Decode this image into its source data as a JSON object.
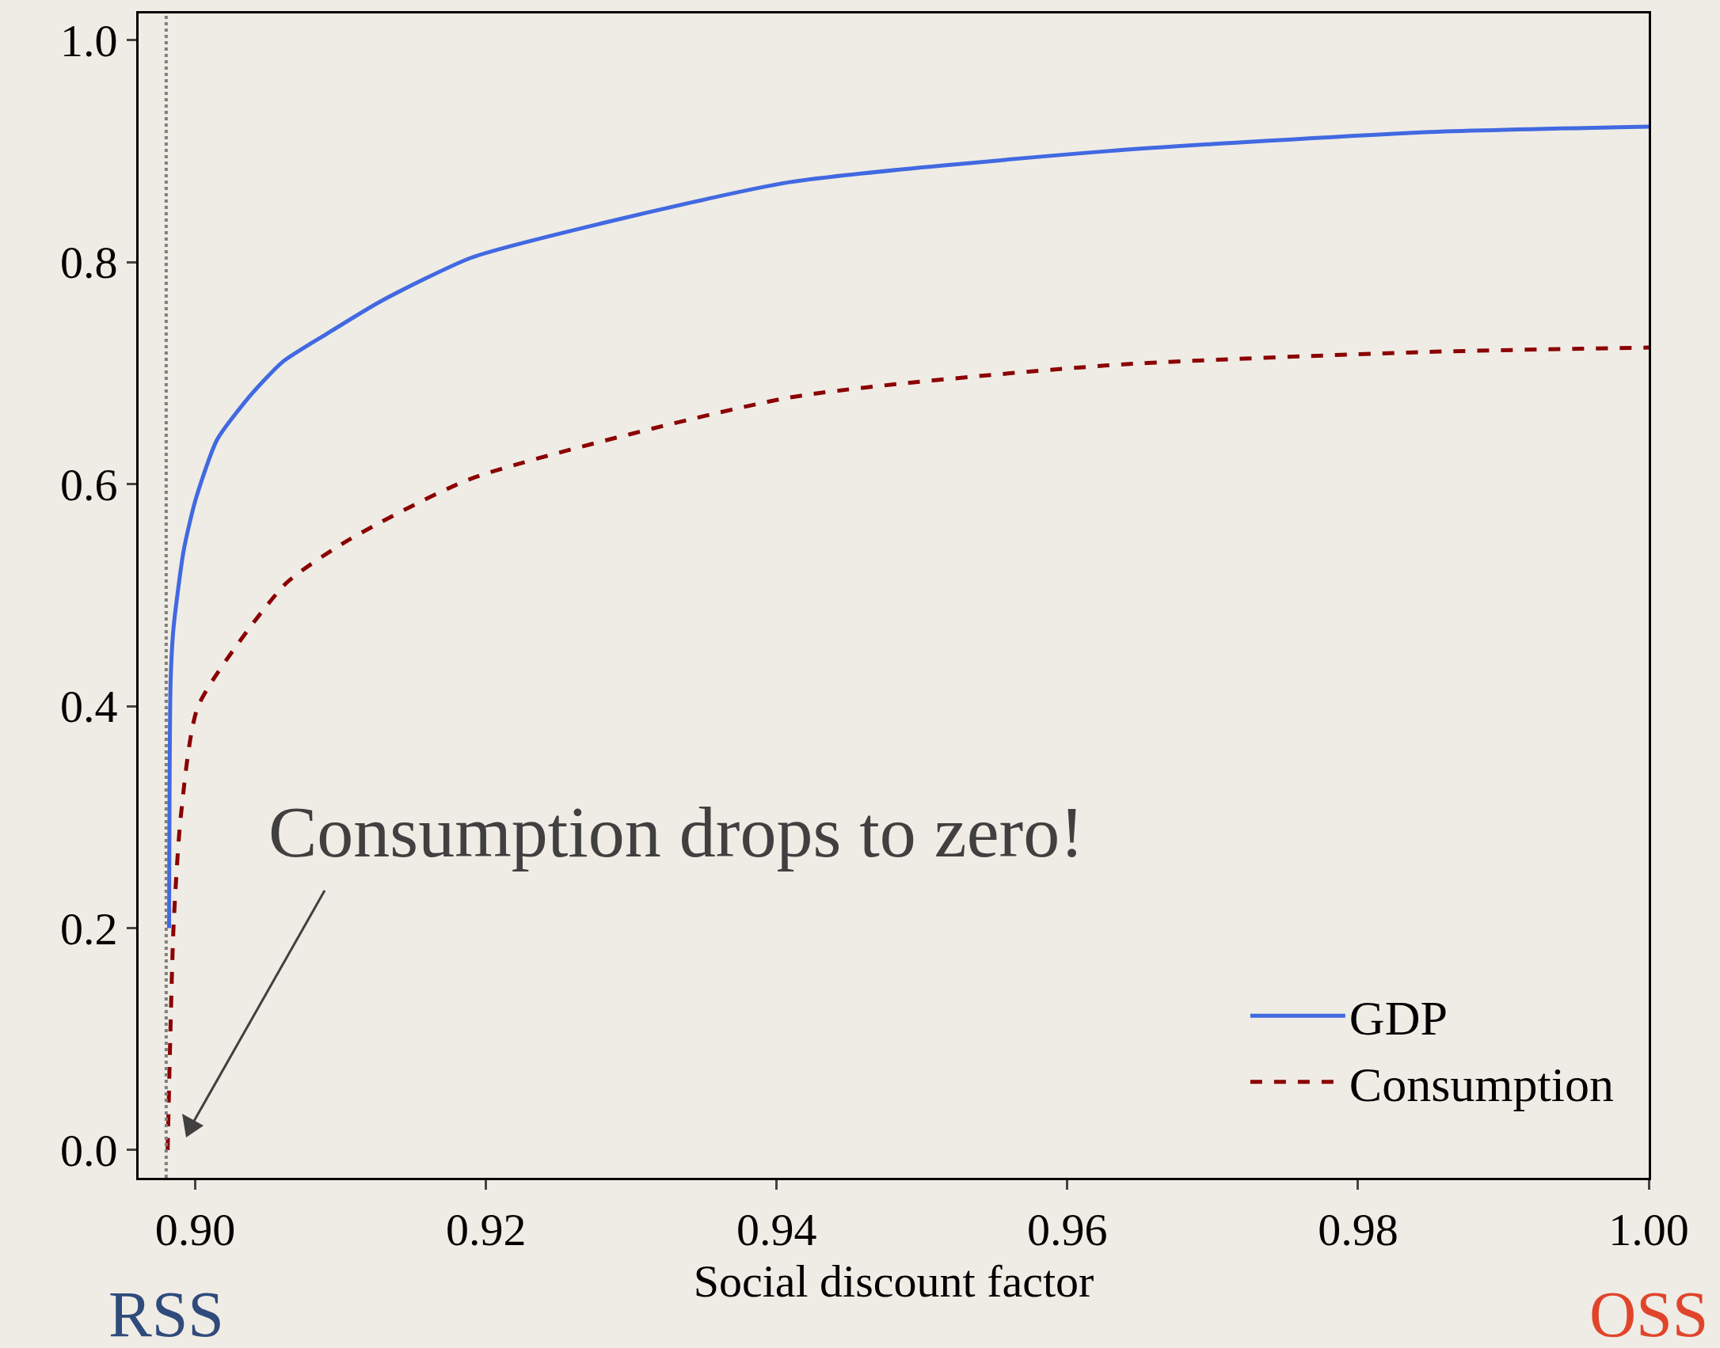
{
  "chart_data": {
    "type": "line",
    "xlabel": "Social discount factor",
    "xlim": [
      0.8961,
      1.0
    ],
    "ylim": [
      -0.025,
      1.024
    ],
    "xticks": [
      {
        "value": 0.9,
        "label": "0.90"
      },
      {
        "value": 0.92,
        "label": "0.92"
      },
      {
        "value": 0.94,
        "label": "0.94"
      },
      {
        "value": 0.96,
        "label": "0.96"
      },
      {
        "value": 0.98,
        "label": "0.98"
      },
      {
        "value": 1.0,
        "label": "1.00"
      }
    ],
    "yticks": [
      {
        "value": 0,
        "label": "0.0"
      },
      {
        "value": 0.2,
        "label": "0.2"
      },
      {
        "value": 0.4,
        "label": "0.4"
      },
      {
        "value": 0.6,
        "label": "0.6"
      },
      {
        "value": 0.8,
        "label": "0.8"
      },
      {
        "value": 1.0,
        "label": "1.0"
      }
    ],
    "series": [
      {
        "name": "GDP",
        "color": "#4169e1",
        "line_style": "solid",
        "x": [
          0.8982,
          0.8983,
          0.8985,
          0.8992,
          0.9,
          0.9015,
          0.9038,
          0.906,
          0.909,
          0.9128,
          0.919,
          0.928,
          0.9409,
          0.9628,
          0.9846,
          1.0
        ],
        "values": [
          0.2,
          0.42,
          0.47,
          0.54,
          0.585,
          0.64,
          0.68,
          0.71,
          0.735,
          0.765,
          0.804,
          0.835,
          0.872,
          0.9,
          0.917,
          0.922
        ]
      },
      {
        "name": "Consumption",
        "color": "#8b0000",
        "line_style": "dashed",
        "x": [
          0.8981,
          0.8985,
          0.899,
          0.9002,
          0.9062,
          0.9106,
          0.919,
          0.9409,
          0.9628,
          0.9846,
          1.0
        ],
        "values": [
          0.0,
          0.2,
          0.3,
          0.4,
          0.51,
          0.55,
          0.605,
          0.678,
          0.707,
          0.719,
          0.723
        ]
      }
    ],
    "ref_lines": [
      {
        "axis": "x",
        "value": 0.898,
        "label": "RSS",
        "color": "#808080",
        "line_style": "dotted"
      }
    ],
    "annotations": [
      "Consumption drops to zero!",
      "OSS"
    ],
    "legend": "bottom right",
    "grid": false
  }
}
